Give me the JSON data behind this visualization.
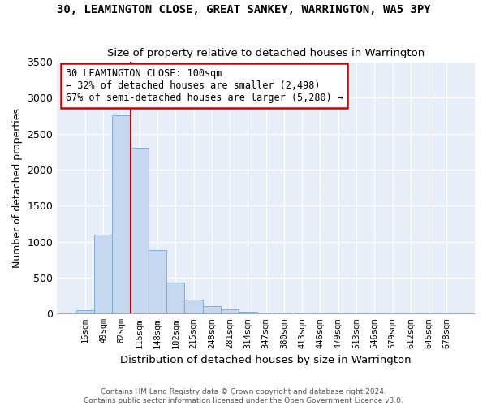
{
  "title": "30, LEAMINGTON CLOSE, GREAT SANKEY, WARRINGTON, WA5 3PY",
  "subtitle": "Size of property relative to detached houses in Warrington",
  "xlabel": "Distribution of detached houses by size in Warrington",
  "ylabel": "Number of detached properties",
  "bar_color": "#c5d8f0",
  "bar_edge_color": "#6fa8d6",
  "plot_bg_color": "#e8eef8",
  "fig_bg_color": "#ffffff",
  "grid_color": "#ffffff",
  "annotation_box_edge": "#cc0000",
  "vline_color": "#cc0000",
  "categories": [
    "16sqm",
    "49sqm",
    "82sqm",
    "115sqm",
    "148sqm",
    "182sqm",
    "215sqm",
    "248sqm",
    "281sqm",
    "314sqm",
    "347sqm",
    "380sqm",
    "413sqm",
    "446sqm",
    "479sqm",
    "513sqm",
    "546sqm",
    "579sqm",
    "612sqm",
    "645sqm",
    "678sqm"
  ],
  "values": [
    45,
    1100,
    2750,
    2300,
    880,
    430,
    200,
    100,
    55,
    30,
    15,
    8,
    15,
    0,
    0,
    0,
    0,
    0,
    0,
    0,
    0
  ],
  "vline_x_index": 2,
  "ylim": [
    0,
    3500
  ],
  "annotation_line1": "30 LEAMINGTON CLOSE: 100sqm",
  "annotation_line2": "← 32% of detached houses are smaller (2,498)",
  "annotation_line3": "67% of semi-detached houses are larger (5,280) →",
  "footer1": "Contains HM Land Registry data © Crown copyright and database right 2024.",
  "footer2": "Contains public sector information licensed under the Open Government Licence v3.0.",
  "yticks": [
    0,
    500,
    1000,
    1500,
    2000,
    2500,
    3000,
    3500
  ]
}
